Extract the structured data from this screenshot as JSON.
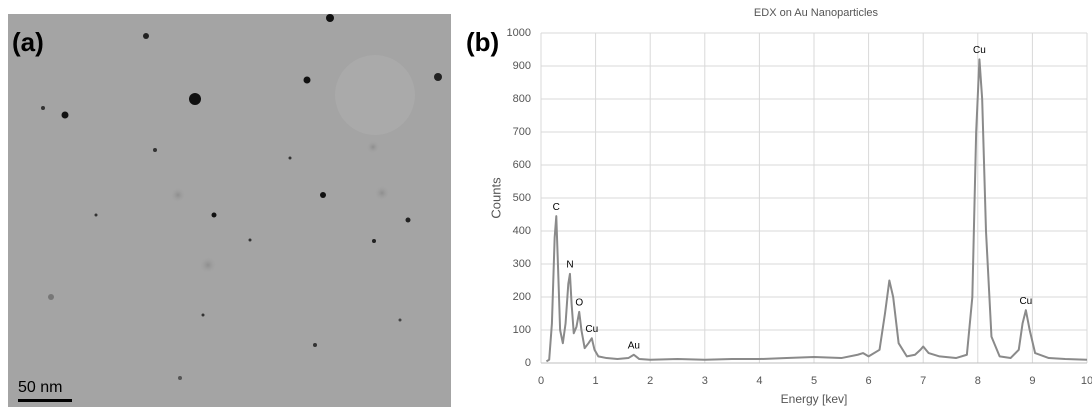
{
  "image": {
    "panel_label": "(a)",
    "scale_bar": "50 nm"
  },
  "chart_data": {
    "type": "line",
    "panel_label": "(b)",
    "title": "EDX on Au Nanoparticles",
    "x_label": "Energy [kev]",
    "y_label": "Counts",
    "x": [
      0.1,
      0.15,
      0.2,
      0.25,
      0.28,
      0.31,
      0.35,
      0.4,
      0.45,
      0.5,
      0.53,
      0.56,
      0.6,
      0.65,
      0.7,
      0.74,
      0.8,
      0.87,
      0.93,
      0.98,
      1.05,
      1.2,
      1.4,
      1.6,
      1.7,
      1.8,
      2.0,
      2.5,
      3.0,
      3.5,
      4.0,
      4.5,
      5.0,
      5.5,
      5.8,
      5.9,
      6.0,
      6.2,
      6.3,
      6.38,
      6.45,
      6.55,
      6.7,
      6.85,
      6.95,
      7.0,
      7.1,
      7.3,
      7.6,
      7.8,
      7.9,
      7.97,
      8.03,
      8.08,
      8.15,
      8.25,
      8.4,
      8.6,
      8.75,
      8.82,
      8.88,
      8.95,
      9.05,
      9.3,
      9.6,
      10.0
    ],
    "values": [
      5,
      10,
      120,
      380,
      445,
      300,
      100,
      60,
      120,
      240,
      270,
      180,
      90,
      110,
      155,
      100,
      45,
      60,
      75,
      40,
      20,
      15,
      12,
      15,
      25,
      12,
      10,
      12,
      10,
      12,
      12,
      15,
      18,
      15,
      25,
      30,
      20,
      40,
      150,
      250,
      200,
      60,
      20,
      25,
      40,
      50,
      30,
      20,
      15,
      25,
      200,
      700,
      920,
      800,
      400,
      80,
      20,
      15,
      40,
      120,
      160,
      100,
      30,
      15,
      12,
      10
    ],
    "color": "#8a8a8a",
    "annotations": [
      {
        "text": "C",
        "x": 0.28,
        "y": 445
      },
      {
        "text": "N",
        "x": 0.53,
        "y": 270
      },
      {
        "text": "O",
        "x": 0.7,
        "y": 155
      },
      {
        "text": "Cu",
        "x": 0.93,
        "y": 75
      },
      {
        "text": "Au",
        "x": 1.7,
        "y": 25
      },
      {
        "text": "Cu",
        "x": 8.03,
        "y": 920
      },
      {
        "text": "Cu",
        "x": 8.88,
        "y": 160
      }
    ],
    "xlim": [
      0,
      10
    ],
    "xticks": [
      0,
      1,
      2,
      3,
      4,
      5,
      6,
      7,
      8,
      9,
      10
    ],
    "ylim": [
      0,
      1000
    ],
    "yticks": [
      0,
      100,
      200,
      300,
      400,
      500,
      600,
      700,
      800,
      900,
      1000
    ],
    "grid": true
  }
}
